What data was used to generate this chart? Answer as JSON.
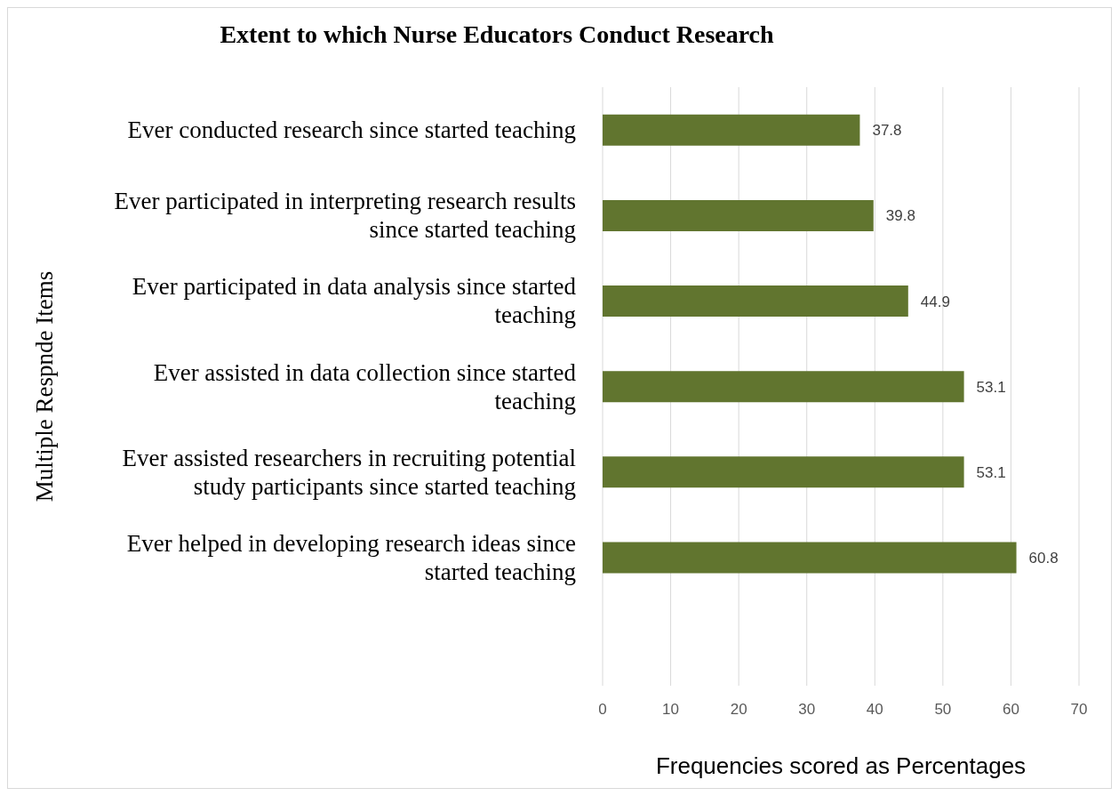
{
  "chart_data": {
    "type": "bar",
    "orientation": "horizontal",
    "title": "Extent to which Nurse Educators Conduct Research",
    "xlabel": "Frequencies scored as Percentages",
    "ylabel": "Multiple Respnde Items",
    "categories": [
      "Ever conducted research since started teaching",
      "Ever participated in interpreting research results since started teaching",
      "Ever participated in data analysis since started teaching",
      "Ever assisted in data collection since started teaching",
      "Ever assisted researchers in recruiting potential study participants since started teaching",
      "Ever helped in developing research ideas since started teaching",
      null
    ],
    "values": [
      37.8,
      39.8,
      44.9,
      53.1,
      53.1,
      60.8,
      null
    ],
    "color": "#61752f",
    "xlim": [
      0,
      70
    ],
    "xticks": [
      0,
      10,
      20,
      30,
      40,
      50,
      60,
      70
    ],
    "grid": "x",
    "data_labels": true,
    "legend": false
  }
}
